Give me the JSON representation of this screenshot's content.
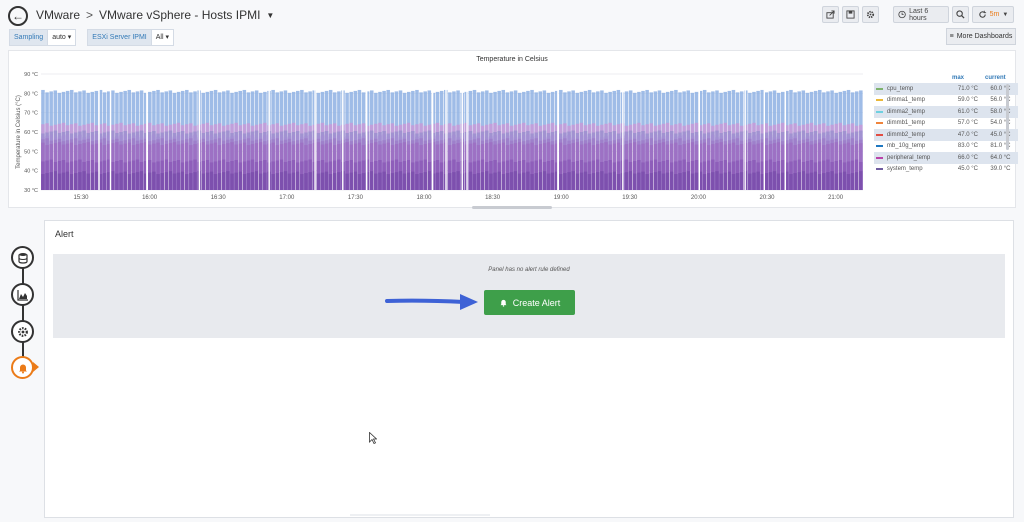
{
  "header": {
    "crumb_root": "VMware",
    "crumb_sep": ">",
    "dashboard_title": "VMware vSphere - Hosts IPMI",
    "time_range": "Last 6 hours",
    "refresh": "5m"
  },
  "variables": [
    {
      "label": "Sampling",
      "value": "auto"
    },
    {
      "label": "ESXi Server IPMI",
      "value": "All"
    }
  ],
  "more_dashboards": "More Dashboards",
  "graph": {
    "title": "Temperature in Celsius",
    "legend_max_header": "max",
    "legend_current_header": "current"
  },
  "chart_data": {
    "type": "bar",
    "title": "Temperature in Celsius",
    "ylabel": "Temperature in Celsius (°C)",
    "xlabel": "",
    "y_ticks": [
      "90 °C",
      "80 °C",
      "70 °C",
      "60 °C",
      "50 °C",
      "40 °C",
      "30 °C"
    ],
    "ylim": [
      30,
      90
    ],
    "x_ticks": [
      "15:30",
      "16:00",
      "16:30",
      "17:00",
      "17:30",
      "18:00",
      "18:30",
      "19:00",
      "19:30",
      "20:00",
      "20:30",
      "21:00"
    ],
    "series": [
      {
        "name": "cpu_temp",
        "color": "#7eb26d",
        "max": "71.0 °C",
        "current": "60.0 °C",
        "level": 60
      },
      {
        "name": "dimma1_temp",
        "color": "#eab839",
        "max": "59.0 °C",
        "current": "56.0 °C",
        "level": 56
      },
      {
        "name": "dimma2_temp",
        "color": "#6ed0e0",
        "max": "61.0 °C",
        "current": "58.0 °C",
        "level": 58
      },
      {
        "name": "dimmb1_temp",
        "color": "#ef843c",
        "max": "57.0 °C",
        "current": "54.0 °C",
        "level": 54
      },
      {
        "name": "dimmb2_temp",
        "color": "#e24d42",
        "max": "47.0 °C",
        "current": "45.0 °C",
        "level": 45
      },
      {
        "name": "mb_10g_temp",
        "color": "#1f78c1",
        "max": "83.0 °C",
        "current": "81.0 °C",
        "level": 81
      },
      {
        "name": "peripheral_temp",
        "color": "#ba43a9",
        "max": "66.0 °C",
        "current": "64.0 °C",
        "level": 64
      },
      {
        "name": "system_temp",
        "color": "#705da0",
        "max": "45.0 °C",
        "current": "39.0 °C",
        "level": 39
      }
    ]
  },
  "alert": {
    "title": "Alert",
    "no_rule_text": "Panel has no alert rule defined",
    "create_button": "Create Alert"
  }
}
